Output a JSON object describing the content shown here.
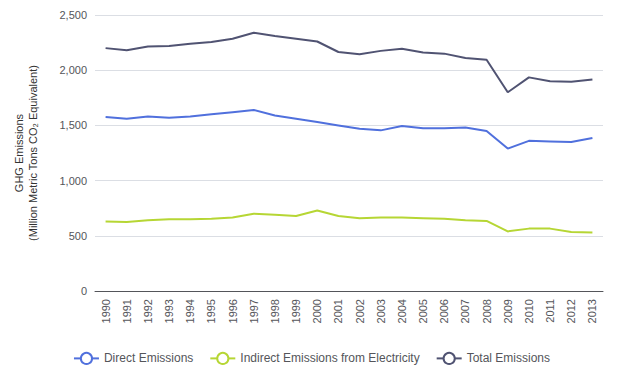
{
  "chart_data": {
    "type": "line",
    "ylabel": "GHG Emissions\n(Million Metric Tons CO₂ Equivalent)",
    "categories": [
      "1990",
      "1991",
      "1992",
      "1993",
      "1994",
      "1995",
      "1996",
      "1997",
      "1998",
      "1999",
      "2000",
      "2001",
      "2002",
      "2003",
      "2004",
      "2005",
      "2006",
      "2007",
      "2008",
      "2009",
      "2010",
      "2011",
      "2012",
      "2013"
    ],
    "series": [
      {
        "name": "Direct Emissions",
        "values": [
          1575,
          1560,
          1580,
          1570,
          1580,
          1600,
          1620,
          1640,
          1590,
          1560,
          1530,
          1500,
          1470,
          1455,
          1495,
          1475,
          1475,
          1480,
          1450,
          1290,
          1360,
          1355,
          1350,
          1385
        ]
      },
      {
        "name": "Indirect Emissions from Electricity",
        "values": [
          630,
          625,
          640,
          650,
          650,
          655,
          665,
          700,
          690,
          680,
          730,
          680,
          660,
          665,
          665,
          660,
          655,
          640,
          635,
          540,
          565,
          565,
          535,
          530
        ]
      },
      {
        "name": "Total Emissions",
        "values": [
          2200,
          2180,
          2215,
          2220,
          2240,
          2255,
          2285,
          2340,
          2310,
          2285,
          2260,
          2165,
          2145,
          2175,
          2195,
          2160,
          2150,
          2110,
          2095,
          1800,
          1935,
          1900,
          1895,
          1915
        ]
      }
    ],
    "ylim": [
      0,
      2500
    ],
    "yticks": [
      0,
      500,
      {
        "value": 1000,
        "label": "1,000"
      },
      {
        "value": 1500,
        "label": "1,500"
      },
      {
        "value": 2000,
        "label": "2,000"
      },
      {
        "value": 2500,
        "label": "2,500"
      }
    ],
    "grid": true,
    "legend": "bottom"
  }
}
